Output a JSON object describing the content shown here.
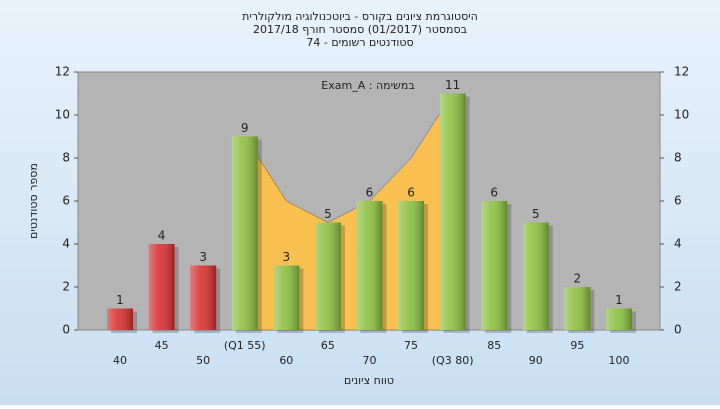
{
  "chart_data": {
    "type": "bar",
    "title": [
      "היסטוגרמת ציונים בקורס - ביוטכנולוגיה מולקולרית",
      "בסמסטר  (01/2017)  סמסטר חורף 2017/18",
      "סטודנטים רשומים - 74"
    ],
    "annotation": "Exam_A : במשימה",
    "x_label": "טווח ציונים",
    "y_label": "מספר סטודנטים",
    "categories": [
      "40",
      "45",
      "50",
      "(Q1 55)",
      "60",
      "65",
      "70",
      "75",
      "(Q3 80)",
      "85",
      "90",
      "95",
      "100"
    ],
    "series": [
      {
        "values": [
          1,
          4,
          3,
          9,
          3,
          5,
          6,
          6,
          11,
          6,
          5,
          2,
          1
        ],
        "colors": [
          "#d83030",
          "#d83030",
          "#d83030",
          "#8cc040",
          "#8cc040",
          "#8cc040",
          "#8cc040",
          "#8cc040",
          "#8cc040",
          "#8cc040",
          "#8cc040",
          "#8cc040",
          "#8cc040"
        ]
      },
      {
        "type": "area",
        "color": "#f8c050",
        "values": [
          null,
          null,
          null,
          9,
          6,
          5,
          6,
          8,
          11,
          null,
          null,
          null,
          null
        ]
      }
    ],
    "ylim": [
      0,
      12
    ],
    "yticks": [
      0,
      2,
      4,
      6,
      8,
      10,
      12
    ],
    "grid": false
  }
}
